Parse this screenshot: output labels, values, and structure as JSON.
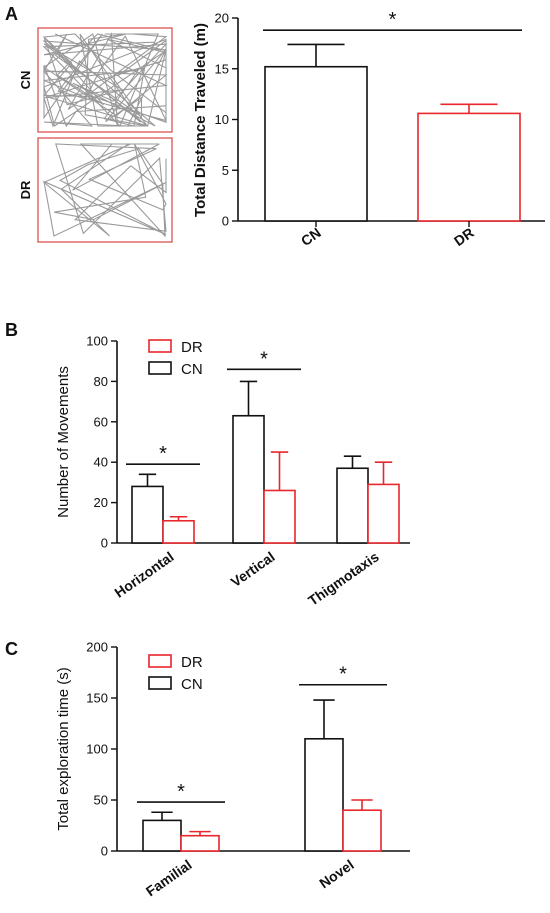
{
  "panel_a": {
    "letter": "A",
    "trace_labels": [
      "CN",
      "DR"
    ]
  },
  "panel_b": {
    "letter": "B"
  },
  "panel_c": {
    "letter": "C"
  },
  "colors": {
    "CN": "#111111",
    "DR": "#e8262b",
    "trace_box": "#d9534f",
    "trace_line": "#9a9a9a"
  },
  "chart_data": [
    {
      "id": "A",
      "type": "bar",
      "title": "",
      "xlabel": "",
      "ylabel": "Total Distance Traveled (m)",
      "ylim": [
        0,
        20
      ],
      "yticks": [
        0,
        5,
        10,
        15,
        20
      ],
      "categories": [
        "CN",
        "DR"
      ],
      "values": [
        15.2,
        10.6
      ],
      "errors": [
        2.2,
        0.9
      ],
      "bar_colors": [
        "CN",
        "DR"
      ],
      "significance": [
        {
          "label": "*",
          "from": 0,
          "to": 1,
          "y": 18.8
        }
      ]
    },
    {
      "id": "B",
      "type": "bar",
      "title": "",
      "xlabel": "",
      "ylabel": "Number of Movements",
      "ylim": [
        0,
        100
      ],
      "yticks": [
        0,
        20,
        40,
        60,
        80,
        100
      ],
      "categories": [
        "Horizontal",
        "Vertical",
        "Thigmotaxis"
      ],
      "series": [
        {
          "name": "CN",
          "values": [
            28,
            63,
            37
          ],
          "errors": [
            6,
            17,
            6
          ]
        },
        {
          "name": "DR",
          "values": [
            11,
            26,
            29
          ],
          "errors": [
            2,
            19,
            11
          ]
        }
      ],
      "legend": {
        "placement": "top-left",
        "order": [
          "DR",
          "CN"
        ]
      },
      "significance": [
        {
          "label": "*",
          "category": 0,
          "y": 39
        },
        {
          "label": "*",
          "category": 1,
          "y": 86
        }
      ]
    },
    {
      "id": "C",
      "type": "bar",
      "title": "",
      "xlabel": "",
      "ylabel": "Total exploration time (s)",
      "ylim": [
        0,
        200
      ],
      "yticks": [
        0,
        50,
        100,
        150,
        200
      ],
      "categories": [
        "Familial",
        "Novel"
      ],
      "series": [
        {
          "name": "CN",
          "values": [
            30,
            110
          ],
          "errors": [
            8,
            38
          ]
        },
        {
          "name": "DR",
          "values": [
            15,
            40
          ],
          "errors": [
            4,
            10
          ]
        }
      ],
      "legend": {
        "placement": "top-left",
        "order": [
          "DR",
          "CN"
        ]
      },
      "significance": [
        {
          "label": "*",
          "category": 0,
          "y": 48
        },
        {
          "label": "*",
          "category": 1,
          "y": 163
        }
      ]
    }
  ]
}
